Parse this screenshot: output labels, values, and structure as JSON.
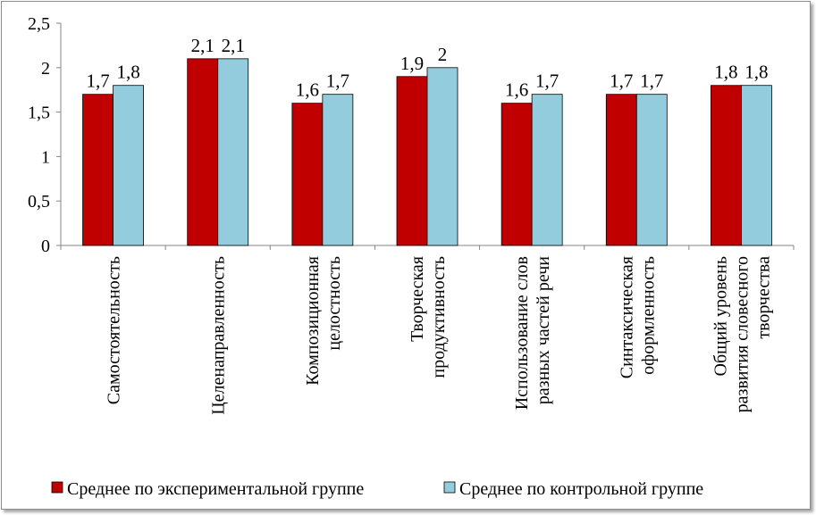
{
  "chart_data": {
    "type": "bar",
    "categories": [
      [
        "Самостоятельность"
      ],
      [
        "Целенаправленность"
      ],
      [
        "Композиционная",
        "целостность"
      ],
      [
        "Творческая",
        "продуктивность"
      ],
      [
        "Использование слов",
        "разных частей речи"
      ],
      [
        "Синтаксическая",
        "оформленность"
      ],
      [
        "Общий уровень",
        "развития словесного",
        "творчества"
      ]
    ],
    "series": [
      {
        "name": "Среднее по экспериментальной группе",
        "values": [
          1.7,
          2.1,
          1.6,
          1.9,
          1.6,
          1.7,
          1.8
        ],
        "labels": [
          "1,7",
          "2,1",
          "1,6",
          "1,9",
          "1,6",
          "1,7",
          "1,8"
        ],
        "color": "#c00000"
      },
      {
        "name": "Среднее по контрольной группе",
        "values": [
          1.8,
          2.1,
          1.7,
          2.0,
          1.7,
          1.7,
          1.8
        ],
        "labels": [
          "1,8",
          "2,1",
          "1,7",
          "2",
          "1,7",
          "1,7",
          "1,8"
        ],
        "color": "#93cddd"
      }
    ],
    "yticks": [
      "0",
      "0,5",
      "1",
      "1,5",
      "2",
      "2,5"
    ],
    "ylim": [
      0,
      2.5
    ],
    "grid": false,
    "legend": "bottom"
  }
}
